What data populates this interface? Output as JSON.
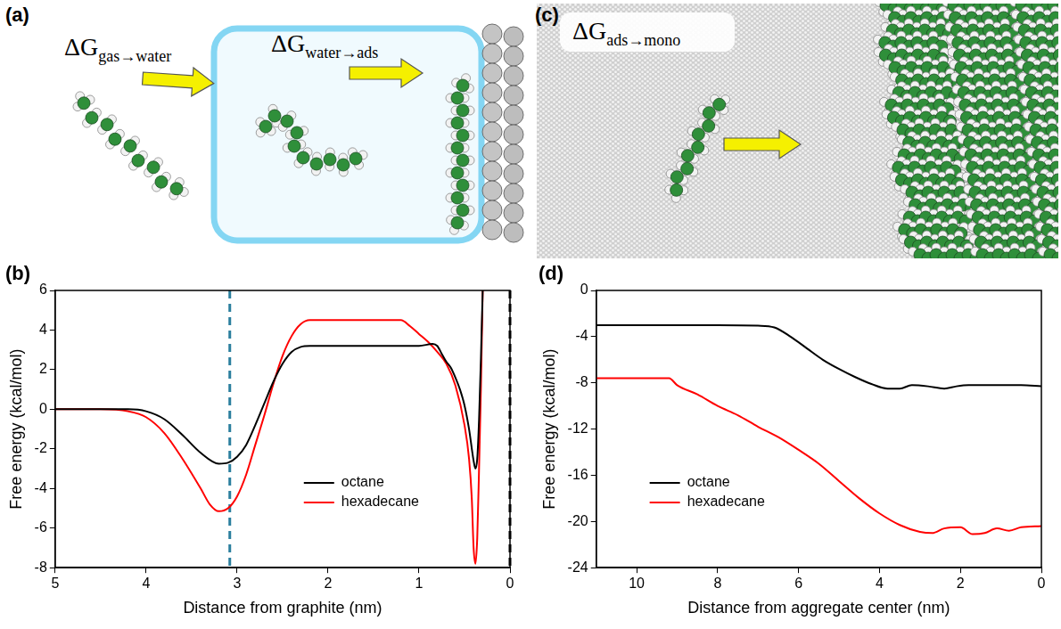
{
  "figure": {
    "panels": [
      {
        "label": "(a)",
        "labels": [
          {
            "main": "ΔG",
            "sub": "gas→water"
          },
          {
            "main": "ΔG",
            "sub": "water→ads"
          }
        ]
      },
      {
        "label": "(c)",
        "labels": [
          {
            "main": "ΔG",
            "sub": "ads→mono"
          }
        ]
      }
    ]
  },
  "chart_data": [
    {
      "panel": "(b)",
      "type": "line",
      "xlabel": "Distance from graphite (nm)",
      "ylabel": "Free energy (kcal/mol)",
      "xlim": [
        5,
        0
      ],
      "xticks": [
        5,
        4,
        3,
        2,
        1,
        0
      ],
      "ylim": [
        -8,
        6
      ],
      "yticks": [
        -8,
        -6,
        -4,
        -2,
        0,
        2,
        4,
        6
      ],
      "grid": false,
      "legend": "lower right",
      "vlines": [
        {
          "x": 3.08,
          "color": "#2b7f9e",
          "line_style": "dashed"
        },
        {
          "x": 0,
          "color": "#000000",
          "line_style": "dashed"
        }
      ],
      "series": [
        {
          "name": "octane",
          "color": "#000000",
          "x": [
            5,
            4.5,
            4.2,
            4.0,
            3.8,
            3.6,
            3.4,
            3.2,
            3.1,
            3.0,
            2.9,
            2.8,
            2.7,
            2.6,
            2.5,
            2.4,
            2.3,
            2.2,
            2.0,
            1.5,
            1.0,
            0.85,
            0.8,
            0.75,
            0.7,
            0.65,
            0.6,
            0.55,
            0.5,
            0.45,
            0.4,
            0.38,
            0.36,
            0.34,
            0.32,
            0.3
          ],
          "values": [
            0,
            0,
            0,
            -0.1,
            -0.5,
            -1.3,
            -2.2,
            -2.75,
            -2.7,
            -2.4,
            -1.8,
            -0.8,
            0.3,
            1.4,
            2.3,
            2.9,
            3.15,
            3.2,
            3.2,
            3.2,
            3.2,
            3.3,
            3.2,
            2.8,
            2.4,
            2.1,
            1.6,
            1.0,
            0.2,
            -1.0,
            -2.6,
            -3.0,
            -2.5,
            -0.5,
            2.5,
            6
          ]
        },
        {
          "name": "hexadecane",
          "color": "#ff0000",
          "x": [
            5,
            4.5,
            4.2,
            4.0,
            3.8,
            3.6,
            3.4,
            3.3,
            3.2,
            3.1,
            3.0,
            2.9,
            2.8,
            2.7,
            2.6,
            2.5,
            2.4,
            2.3,
            2.2,
            2.0,
            1.5,
            1.2,
            1.1,
            1.0,
            0.9,
            0.8,
            0.7,
            0.6,
            0.5,
            0.45,
            0.42,
            0.4,
            0.38,
            0.36,
            0.34,
            0.32,
            0.3
          ],
          "values": [
            0,
            0,
            -0.1,
            -0.4,
            -1.2,
            -2.5,
            -4.0,
            -4.8,
            -5.15,
            -5.0,
            -4.4,
            -3.3,
            -1.8,
            -0.3,
            1.3,
            2.7,
            3.7,
            4.3,
            4.5,
            4.5,
            4.5,
            4.5,
            4.2,
            3.8,
            3.4,
            2.9,
            2.3,
            1.2,
            -0.8,
            -2.5,
            -4.5,
            -7.0,
            -7.8,
            -6.5,
            -3.0,
            1.0,
            6
          ]
        }
      ]
    },
    {
      "panel": "(d)",
      "type": "line",
      "xlabel": "Distance from aggregate center (nm)",
      "ylabel": "Free energy (kcal/mol)",
      "xlim": [
        11,
        0
      ],
      "xticks": [
        10,
        8,
        6,
        4,
        2,
        0
      ],
      "ylim": [
        -24,
        0
      ],
      "yticks": [
        -24,
        -20,
        -16,
        -12,
        -8,
        -4,
        0
      ],
      "grid": false,
      "legend": "lower left",
      "series": [
        {
          "name": "octane",
          "color": "#000000",
          "x": [
            11,
            8,
            7,
            6.6,
            6.2,
            5.8,
            5.4,
            5.0,
            4.6,
            4.2,
            3.8,
            3.5,
            3.2,
            2.8,
            2.4,
            2.1,
            1.8,
            1.4,
            1.0,
            0.5,
            0
          ],
          "values": [
            -3,
            -3,
            -3.05,
            -3.2,
            -4,
            -5,
            -6,
            -6.8,
            -7.5,
            -8.1,
            -8.5,
            -8.5,
            -8.2,
            -8.3,
            -8.5,
            -8.3,
            -8.2,
            -8.2,
            -8.2,
            -8.2,
            -8.3
          ]
        },
        {
          "name": "hexadecane",
          "color": "#ff0000",
          "x": [
            11,
            9.5,
            9.2,
            9.0,
            8.5,
            8.0,
            7.5,
            7.0,
            6.5,
            6.0,
            5.5,
            5.0,
            4.5,
            4.0,
            3.5,
            3.0,
            2.7,
            2.4,
            2.0,
            1.7,
            1.4,
            1.1,
            0.8,
            0.5,
            0
          ],
          "values": [
            -7.6,
            -7.6,
            -7.6,
            -8.2,
            -9,
            -10,
            -10.8,
            -11.8,
            -12.7,
            -13.8,
            -15,
            -16.5,
            -18,
            -19.3,
            -20.3,
            -20.9,
            -21,
            -20.6,
            -20.5,
            -21.1,
            -21,
            -20.6,
            -20.8,
            -20.5,
            -20.4
          ]
        }
      ]
    }
  ]
}
